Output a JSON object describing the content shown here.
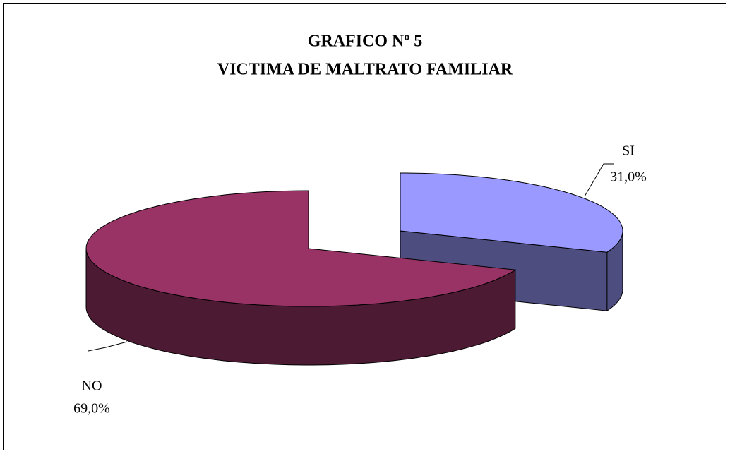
{
  "chart_data": {
    "type": "pie",
    "title": "GRAFICO Nº 5",
    "subtitle": "VICTIMA DE MALTRATO FAMILIAR",
    "categories": [
      "SI",
      "NO"
    ],
    "values": [
      31,
      69
    ],
    "value_labels": [
      "31,0%",
      "69,0%"
    ],
    "colors": [
      "#9999ff",
      "#993366"
    ],
    "side_colors": [
      "#4d4d80",
      "#4d1a33"
    ]
  }
}
